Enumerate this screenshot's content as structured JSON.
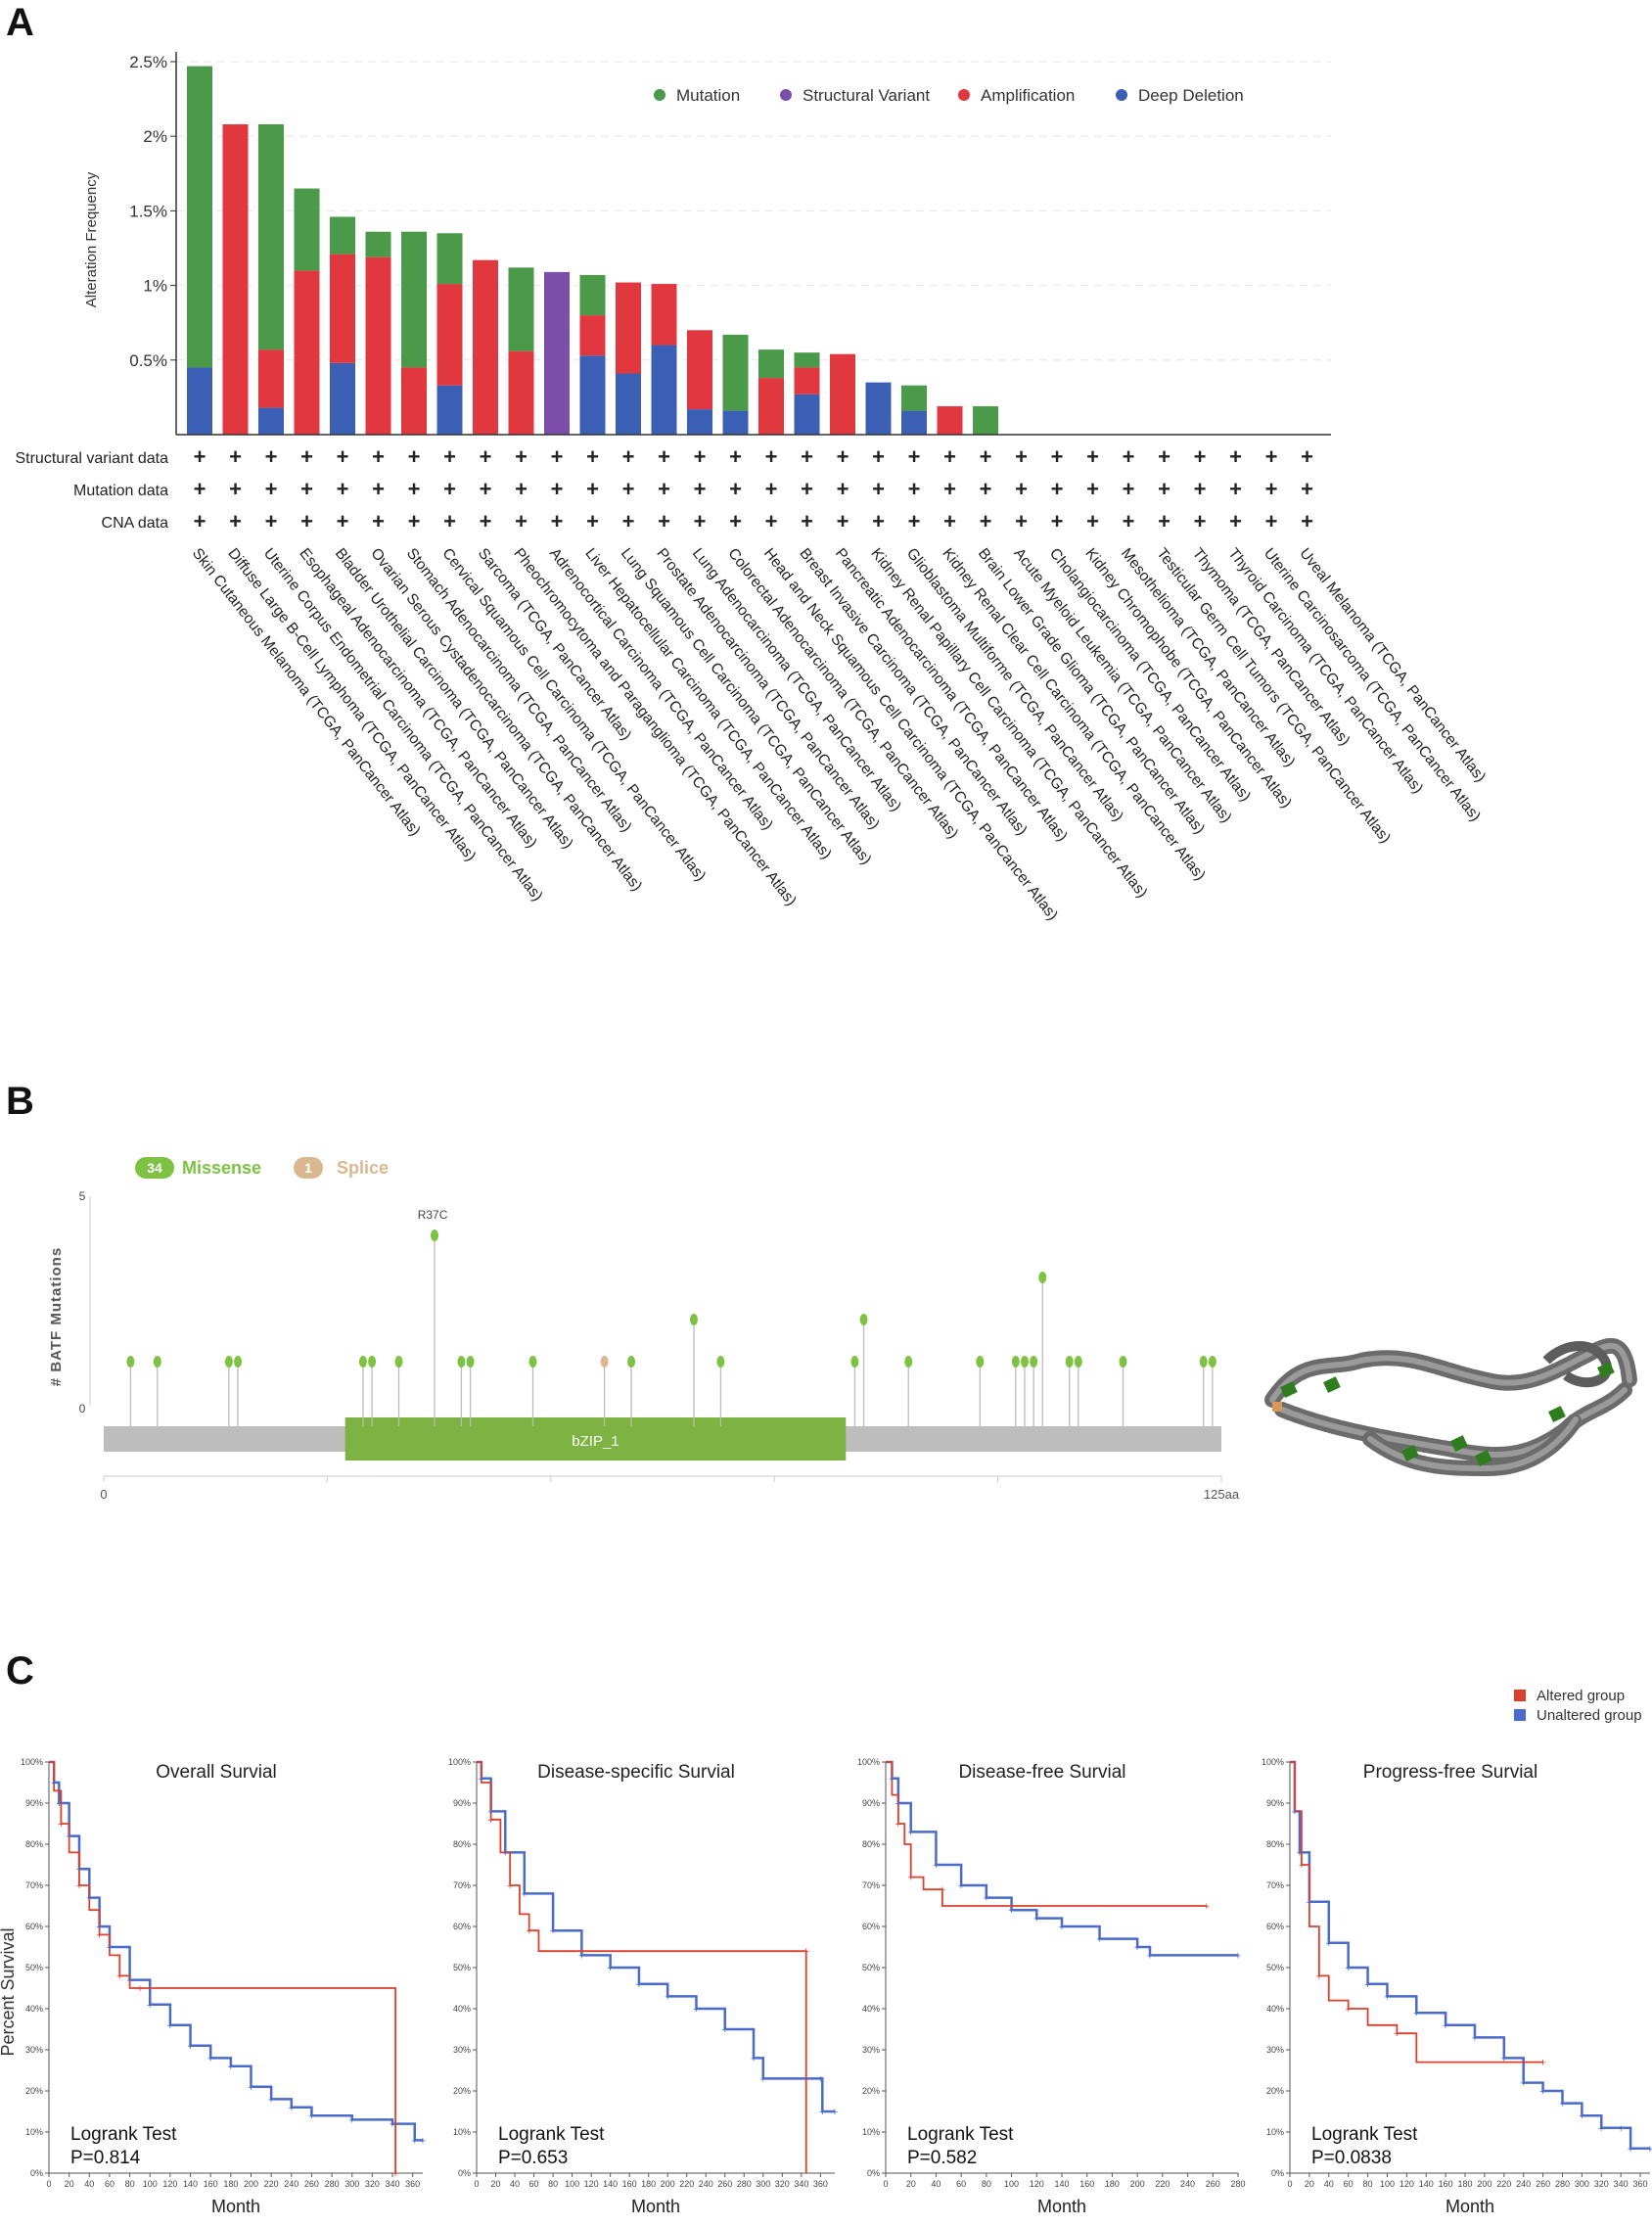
{
  "panels": {
    "a": "A",
    "b": "B",
    "c": "C"
  },
  "chart_data": [
    {
      "type": "bar",
      "stacked": true,
      "ylabel": "Alteration Frequency",
      "ylim": [
        0,
        2.5
      ],
      "yticks": [
        "0.5%",
        "1%",
        "1.5%",
        "2%",
        "2.5%"
      ],
      "legend_position": "top-right",
      "colors": {
        "Mutation": "#4a9a4a",
        "Structural Variant": "#7b4fa8",
        "Amplification": "#e0383e",
        "Deep Deletion": "#3b5fb5"
      },
      "categories": [
        "Skin Cutaneous Melanoma (TCGA, PanCancer Atlas)",
        "Diffuse Large B-Cell Lymphoma (TCGA, PanCancer Atlas)",
        "Uterine Corpus Endometrial Carcinoma (TCGA, PanCancer Atlas)",
        "Esophageal Adenocarcinoma (TCGA, PanCancer Atlas)",
        "Bladder Urothelial Carcinoma (TCGA, PanCancer Atlas)",
        "Ovarian Serous Cystadenocarcinoma (TCGA, PanCancer Atlas)",
        "Stomach Adenocarcinoma (TCGA, PanCancer Atlas)",
        "Cervical Squamous Cell Carcinoma (TCGA, PanCancer Atlas)",
        "Sarcoma (TCGA, PanCancer Atlas)",
        "Pheochromocytoma and Paraganglioma (TCGA, PanCancer Atlas)",
        "Adrenocortical Carcinoma (TCGA, PanCancer Atlas)",
        "Liver Hepatocellular Carcinoma (TCGA, PanCancer Atlas)",
        "Lung Squamous Cell Carcinoma (TCGA, PanCancer Atlas)",
        "Prostate Adenocarcinoma (TCGA, PanCancer Atlas)",
        "Lung Adenocarcinoma (TCGA, PanCancer Atlas)",
        "Colorectal Adenocarcinoma (TCGA, PanCancer Atlas)",
        "Head and Neck Squamous Cell Carcinoma (TCGA, PanCancer Atlas)",
        "Breast Invasive Carcinoma (TCGA, PanCancer Atlas)",
        "Pancreatic Adenocarcinoma (TCGA, PanCancer Atlas)",
        "Kidney Renal Papillary Cell Carcinoma (TCGA, PanCancer Atlas)",
        "Glioblastoma Multiforme (TCGA, PanCancer Atlas)",
        "Kidney Renal Clear Cell Carcinoma (TCGA, PanCancer Atlas)",
        "Brain Lower Grade Glioma (TCGA, PanCancer Atlas)",
        "Acute Myeloid Leukemia (TCGA, PanCancer Atlas)",
        "Cholangiocarcinoma (TCGA, PanCancer Atlas)",
        "Kidney Chromophobe (TCGA, PanCancer Atlas)",
        "Mesothelioma (TCGA, PanCancer Atlas)",
        "Testicular Germ Cell Tumors (TCGA, PanCancer Atlas)",
        "Thymoma (TCGA, PanCancer Atlas)",
        "Thyroid Carcinoma (TCGA, PanCancer Atlas)",
        "Uterine Carcinosarcoma (TCGA, PanCancer Atlas)",
        "Uveal Melanoma (TCGA, PanCancer Atlas)"
      ],
      "series": [
        {
          "name": "Deep Deletion",
          "values": [
            0.45,
            0,
            0.18,
            0,
            0.48,
            0,
            0,
            0.33,
            0,
            0,
            0,
            0.53,
            0.41,
            0.6,
            0.17,
            0.16,
            0,
            0.27,
            0,
            0.35,
            0.16,
            0,
            0,
            0,
            0,
            0,
            0,
            0,
            0,
            0,
            0,
            0
          ]
        },
        {
          "name": "Structural Variant",
          "values": [
            0,
            0,
            0,
            0,
            0,
            0,
            0,
            0,
            0,
            0,
            1.09,
            0,
            0,
            0,
            0,
            0,
            0,
            0,
            0,
            0,
            0,
            0,
            0,
            0,
            0,
            0,
            0,
            0,
            0,
            0,
            0,
            0
          ]
        },
        {
          "name": "Amplification",
          "values": [
            0,
            2.08,
            0.39,
            1.1,
            0.73,
            1.19,
            0.45,
            0.68,
            1.17,
            0.56,
            0,
            0.27,
            0.61,
            0.41,
            0.53,
            0,
            0.38,
            0.18,
            0.54,
            0,
            0,
            0.19,
            0,
            0,
            0,
            0,
            0,
            0,
            0,
            0,
            0,
            0
          ]
        },
        {
          "name": "Mutation",
          "values": [
            2.02,
            0,
            1.51,
            0.55,
            0.25,
            0.17,
            0.91,
            0.34,
            0,
            0.56,
            0,
            0.27,
            0,
            0,
            0,
            0.51,
            0.19,
            0.1,
            0,
            0,
            0.17,
            0,
            0.19,
            0,
            0,
            0,
            0,
            0,
            0,
            0,
            0,
            0
          ]
        }
      ],
      "rows": [
        "Structural variant data",
        "Mutation data",
        "CNA data"
      ],
      "marker": "+"
    },
    {
      "type": "scatter",
      "subtype": "lollipop",
      "ylabel": "# BATF Mutations",
      "ylim": [
        0,
        5
      ],
      "yticks": [
        "0",
        "5"
      ],
      "xticks": [
        "0",
        "125aa"
      ],
      "legend": [
        {
          "count": "34",
          "label": "Missense",
          "color": "#7dc243"
        },
        {
          "count": "1",
          "label": "Splice",
          "color": "#d9b88f"
        }
      ],
      "domain": {
        "label": "bZIP_1",
        "start": 27,
        "end": 83,
        "color": "#7cb342"
      },
      "annotation": "R37C",
      "points": [
        {
          "x": 3,
          "y": 1
        },
        {
          "x": 6,
          "y": 1
        },
        {
          "x": 14,
          "y": 1
        },
        {
          "x": 15,
          "y": 1
        },
        {
          "x": 29,
          "y": 1
        },
        {
          "x": 30,
          "y": 1
        },
        {
          "x": 33,
          "y": 1
        },
        {
          "x": 37,
          "y": 4
        },
        {
          "x": 40,
          "y": 1
        },
        {
          "x": 41,
          "y": 1
        },
        {
          "x": 48,
          "y": 1
        },
        {
          "x": 56,
          "y": 1,
          "type": "Splice"
        },
        {
          "x": 59,
          "y": 1
        },
        {
          "x": 66,
          "y": 2
        },
        {
          "x": 69,
          "y": 1
        },
        {
          "x": 84,
          "y": 1
        },
        {
          "x": 85,
          "y": 2
        },
        {
          "x": 90,
          "y": 1
        },
        {
          "x": 98,
          "y": 1
        },
        {
          "x": 102,
          "y": 1
        },
        {
          "x": 103,
          "y": 1
        },
        {
          "x": 104,
          "y": 1
        },
        {
          "x": 105,
          "y": 3
        },
        {
          "x": 108,
          "y": 1
        },
        {
          "x": 109,
          "y": 1
        },
        {
          "x": 114,
          "y": 1
        },
        {
          "x": 123,
          "y": 1
        },
        {
          "x": 124,
          "y": 1
        }
      ]
    },
    {
      "type": "line",
      "subtype": "kaplan-meier",
      "ylabel": "Percent Survival",
      "xlabel": "Month",
      "legend": [
        {
          "name": "Altered group",
          "color": "#d9412e"
        },
        {
          "name": "Unaltered group",
          "color": "#4a6bc9"
        }
      ],
      "yticks": [
        "0%",
        "10%",
        "20%",
        "30%",
        "40%",
        "50%",
        "60%",
        "70%",
        "80%",
        "90%",
        "100%"
      ],
      "plots": [
        {
          "title": "Overall Survial",
          "test": "Logrank Test",
          "p": "P=0.814",
          "xmax": 370,
          "xticks": [
            "0",
            "20",
            "40",
            "60",
            "80",
            "100",
            "120",
            "140",
            "160",
            "180",
            "200",
            "220",
            "240",
            "260",
            "280",
            "300",
            "320",
            "340",
            "360"
          ],
          "altered": [
            [
              0,
              100
            ],
            [
              5,
              93
            ],
            [
              12,
              85
            ],
            [
              20,
              78
            ],
            [
              30,
              70
            ],
            [
              40,
              64
            ],
            [
              50,
              58
            ],
            [
              60,
              53
            ],
            [
              70,
              48
            ],
            [
              80,
              45
            ],
            [
              90,
              45
            ],
            [
              343,
              45
            ],
            [
              343,
              0
            ]
          ],
          "unaltered": [
            [
              0,
              100
            ],
            [
              5,
              95
            ],
            [
              10,
              90
            ],
            [
              20,
              82
            ],
            [
              30,
              74
            ],
            [
              40,
              67
            ],
            [
              50,
              60
            ],
            [
              60,
              55
            ],
            [
              80,
              47
            ],
            [
              100,
              41
            ],
            [
              120,
              36
            ],
            [
              140,
              31
            ],
            [
              160,
              28
            ],
            [
              180,
              26
            ],
            [
              200,
              21
            ],
            [
              220,
              18
            ],
            [
              240,
              16
            ],
            [
              260,
              14
            ],
            [
              300,
              13
            ],
            [
              340,
              12
            ],
            [
              362,
              8
            ],
            [
              370,
              8
            ]
          ]
        },
        {
          "title": "Disease-specific Survial",
          "test": "Logrank Test",
          "p": "P=0.653",
          "xmax": 375,
          "xticks": [
            "0",
            "20",
            "40",
            "60",
            "80",
            "100",
            "120",
            "140",
            "160",
            "180",
            "200",
            "220",
            "240",
            "260",
            "280",
            "300",
            "320",
            "340",
            "360"
          ],
          "altered": [
            [
              0,
              100
            ],
            [
              5,
              95
            ],
            [
              15,
              86
            ],
            [
              25,
              78
            ],
            [
              35,
              70
            ],
            [
              45,
              63
            ],
            [
              55,
              59
            ],
            [
              65,
              54
            ],
            [
              345,
              54
            ],
            [
              345,
              0
            ]
          ],
          "unaltered": [
            [
              0,
              100
            ],
            [
              5,
              96
            ],
            [
              15,
              88
            ],
            [
              30,
              78
            ],
            [
              50,
              68
            ],
            [
              80,
              59
            ],
            [
              110,
              53
            ],
            [
              140,
              50
            ],
            [
              170,
              46
            ],
            [
              200,
              43
            ],
            [
              230,
              40
            ],
            [
              260,
              35
            ],
            [
              290,
              28
            ],
            [
              300,
              23
            ],
            [
              360,
              23
            ],
            [
              362,
              15
            ],
            [
              375,
              15
            ]
          ]
        },
        {
          "title": "Disease-free Survial",
          "test": "Logrank Test",
          "p": "P=0.582",
          "xmax": 280,
          "xticks": [
            "0",
            "20",
            "40",
            "60",
            "80",
            "100",
            "120",
            "140",
            "160",
            "180",
            "200",
            "220",
            "240",
            "260",
            "280"
          ],
          "altered": [
            [
              0,
              100
            ],
            [
              5,
              92
            ],
            [
              10,
              85
            ],
            [
              15,
              80
            ],
            [
              20,
              72
            ],
            [
              30,
              69
            ],
            [
              45,
              69
            ],
            [
              45,
              65
            ],
            [
              255,
              65
            ]
          ],
          "unaltered": [
            [
              0,
              100
            ],
            [
              5,
              96
            ],
            [
              10,
              90
            ],
            [
              20,
              83
            ],
            [
              40,
              75
            ],
            [
              60,
              70
            ],
            [
              80,
              67
            ],
            [
              100,
              64
            ],
            [
              120,
              62
            ],
            [
              140,
              60
            ],
            [
              170,
              57
            ],
            [
              200,
              55
            ],
            [
              210,
              53
            ],
            [
              280,
              53
            ]
          ]
        },
        {
          "title": "Progress-free Survial",
          "test": "Logrank Test",
          "p": "P=0.0838",
          "xmax": 370,
          "xticks": [
            "0",
            "20",
            "40",
            "60",
            "80",
            "100",
            "120",
            "140",
            "160",
            "180",
            "200",
            "220",
            "240",
            "260",
            "280",
            "300",
            "320",
            "340",
            "360"
          ],
          "altered": [
            [
              0,
              100
            ],
            [
              5,
              88
            ],
            [
              12,
              75
            ],
            [
              20,
              60
            ],
            [
              30,
              48
            ],
            [
              40,
              42
            ],
            [
              60,
              40
            ],
            [
              80,
              36
            ],
            [
              110,
              34
            ],
            [
              130,
              27
            ],
            [
              260,
              27
            ]
          ],
          "unaltered": [
            [
              0,
              100
            ],
            [
              5,
              88
            ],
            [
              10,
              78
            ],
            [
              20,
              66
            ],
            [
              40,
              56
            ],
            [
              60,
              50
            ],
            [
              80,
              46
            ],
            [
              100,
              43
            ],
            [
              130,
              39
            ],
            [
              160,
              36
            ],
            [
              190,
              33
            ],
            [
              220,
              28
            ],
            [
              240,
              22
            ],
            [
              260,
              20
            ],
            [
              280,
              17
            ],
            [
              300,
              14
            ],
            [
              320,
              11
            ],
            [
              340,
              11
            ],
            [
              350,
              6
            ],
            [
              370,
              6
            ]
          ]
        }
      ]
    }
  ]
}
